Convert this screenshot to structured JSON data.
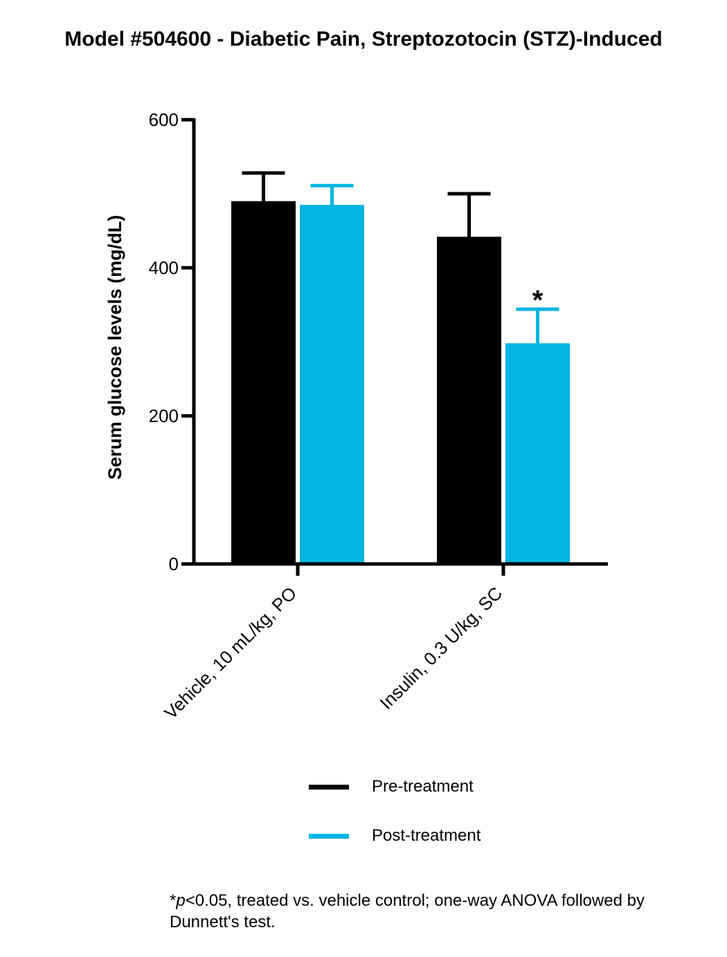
{
  "chart_data": {
    "type": "bar",
    "title": "Model #504600 - Diabetic Pain, Streptozotocin (STZ)-Induced",
    "xlabel": "",
    "ylabel": "Serum glucose levels (mg/dL)",
    "ylim": [
      0,
      600
    ],
    "yticks": [
      "0",
      "200",
      "400",
      "600"
    ],
    "categories": [
      "Vehicle, 10 mL/kg, PO",
      "Insulin, 0.3 U/kg, SC"
    ],
    "series": [
      {
        "name": "Pre-treatment",
        "color": "#000000",
        "values": [
          490,
          442
        ],
        "error": [
          38,
          58
        ]
      },
      {
        "name": "Post-treatment",
        "color": "#00b5e2",
        "values": [
          485,
          298
        ],
        "error": [
          26,
          46
        ]
      }
    ],
    "annotations": [
      {
        "text": "*",
        "category": 1,
        "series": 1
      }
    ],
    "legend_position": "bottom",
    "grid": false
  },
  "footnote": {
    "p_symbol": "*",
    "p_italic": "p",
    "p_rest": "<0.05, treated vs. vehicle control; one-way ANOVA followed by Dunnett's test."
  }
}
